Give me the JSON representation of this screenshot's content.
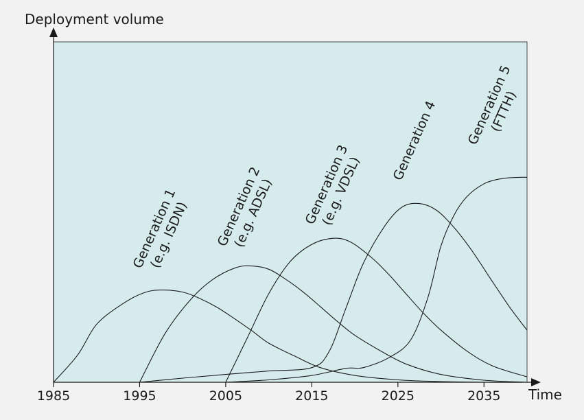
{
  "chart_data": {
    "type": "line",
    "ylabel": "Deployment volume",
    "xlabel": "Time",
    "xlim": [
      1985,
      2040
    ],
    "ylim": [
      0,
      100
    ],
    "xticks": [
      1985,
      1995,
      2005,
      2015,
      2025,
      2035
    ],
    "grid": false,
    "legend": "none",
    "colors": {
      "plot_background": "#d6ebec",
      "page_background": "#f2f2f2",
      "line": "#1a1a1a"
    },
    "series": [
      {
        "label_line1": "Generation 1",
        "label_line2": "(e.g. ISDN)",
        "x": [
          1985,
          1987.8,
          1990,
          1993,
          1995.5,
          1997.5,
          2000,
          2002,
          2004,
          2006,
          2008,
          2010,
          2013,
          2016,
          2020,
          2025,
          2030,
          2035,
          2040
        ],
        "y": [
          0,
          8,
          17,
          23,
          26.3,
          27.1,
          26.5,
          24.6,
          22,
          18.7,
          15.2,
          11.5,
          7.7,
          4.3,
          2,
          0.7,
          0.2,
          0,
          0
        ]
      },
      {
        "label_line1": "Generation 2",
        "label_line2": "(e.g. ADSL)",
        "x": [
          1995,
          1998,
          2001,
          2003.5,
          2006,
          2007.8,
          2010,
          2012,
          2014,
          2016,
          2018,
          2020,
          2023,
          2026,
          2030,
          2035,
          2040
        ],
        "y": [
          0,
          14.5,
          24.5,
          30.2,
          33.5,
          34.2,
          33.2,
          30.2,
          26.5,
          22.2,
          17.8,
          13.8,
          9.2,
          5.3,
          2.3,
          0.6,
          0
        ]
      },
      {
        "label_line1": "Generation 3",
        "label_line2": "(e.g. VDSL)",
        "x": [
          2005,
          2007.5,
          2010,
          2012.5,
          2015,
          2017.5,
          2019.5,
          2022,
          2024,
          2026,
          2028,
          2030,
          2033,
          2036,
          2040
        ],
        "y": [
          0,
          13,
          26,
          35.5,
          40.5,
          42.3,
          41.2,
          36.5,
          31.5,
          25.8,
          20.2,
          15.3,
          9.2,
          4.8,
          1.6
        ]
      },
      {
        "label_line1": "Generation 4",
        "label_line2": "",
        "x": [
          1995,
          2000,
          2005,
          2010,
          2015,
          2017,
          2019,
          2021,
          2023.5,
          2025.5,
          2027.5,
          2029.5,
          2031.5,
          2033.5,
          2036,
          2038,
          2040
        ],
        "y": [
          0,
          1.2,
          2.3,
          3.3,
          4.3,
          9,
          22,
          35,
          46,
          51.5,
          52.5,
          50.5,
          45.5,
          39,
          29.5,
          22,
          15.3
        ]
      },
      {
        "label_line1": "Generation 5",
        "label_line2": "(FTTH)",
        "x": [
          2005,
          2010,
          2015,
          2019,
          2021,
          2024,
          2026.5,
          2028.5,
          2030,
          2031.5,
          2033,
          2035,
          2037,
          2039,
          2040
        ],
        "y": [
          0,
          0.7,
          2,
          4.1,
          4.3,
          7.3,
          12.5,
          25,
          40,
          49,
          54.5,
          58.3,
          59.8,
          60.2,
          60.2
        ]
      }
    ]
  }
}
